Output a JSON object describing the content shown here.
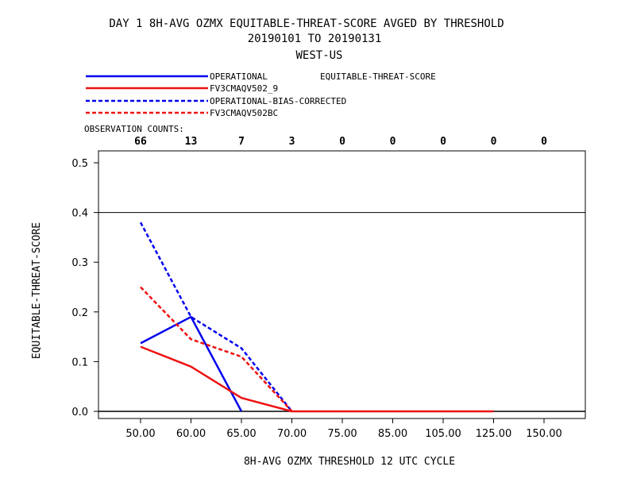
{
  "title": {
    "line1": "DAY 1   8H-AVG OZMX EQUITABLE-THREAT-SCORE   AVGED BY THRESHOLD",
    "line2": "20190101 TO 20190131",
    "line3": "WEST-US"
  },
  "legend_stat_label": "EQUITABLE-THREAT-SCORE",
  "observation_counts_label": "OBSERVATION COUNTS:",
  "observation_counts": [
    "66",
    "13",
    "7",
    "3",
    "0",
    "0",
    "0",
    "0",
    "0"
  ],
  "colors": {
    "blue": "#0000ee",
    "red": "#ee1111",
    "axis": "#000000"
  },
  "chart_data": {
    "type": "line",
    "categories": [
      "50.00",
      "60.00",
      "65.00",
      "70.00",
      "75.00",
      "85.00",
      "105.00",
      "125.00",
      "150.00"
    ],
    "xlabel": "8H-AVG OZMX THRESHOLD    12 UTC CYCLE",
    "ylabel": "EQUITABLE-THREAT-SCORE",
    "ylim": [
      0,
      0.5
    ],
    "yticks": [
      "0.0",
      "0.1",
      "0.2",
      "0.3",
      "0.4",
      "0.5"
    ],
    "reference_line": 0.4,
    "series": [
      {
        "name": "OPERATIONAL",
        "color": "#0000ee",
        "dash": "solid",
        "values": [
          0.137,
          0.19,
          0.0,
          null,
          null,
          null,
          null,
          null,
          null
        ]
      },
      {
        "name": "FV3CMAQV502_9",
        "color": "#ee1111",
        "dash": "solid",
        "values": [
          0.13,
          0.09,
          0.027,
          0.0,
          0.0,
          0.0,
          0.0,
          0.0,
          null
        ]
      },
      {
        "name": "OPERATIONAL-BIAS-CORRECTED",
        "color": "#0000ee",
        "dash": "dashed",
        "values": [
          0.38,
          0.19,
          0.127,
          0.0,
          null,
          null,
          null,
          null,
          null
        ]
      },
      {
        "name": "FV3CMAQV502BC",
        "color": "#ee1111",
        "dash": "dashed",
        "values": [
          0.25,
          0.145,
          0.11,
          0.0,
          null,
          null,
          null,
          null,
          null
        ]
      }
    ]
  }
}
